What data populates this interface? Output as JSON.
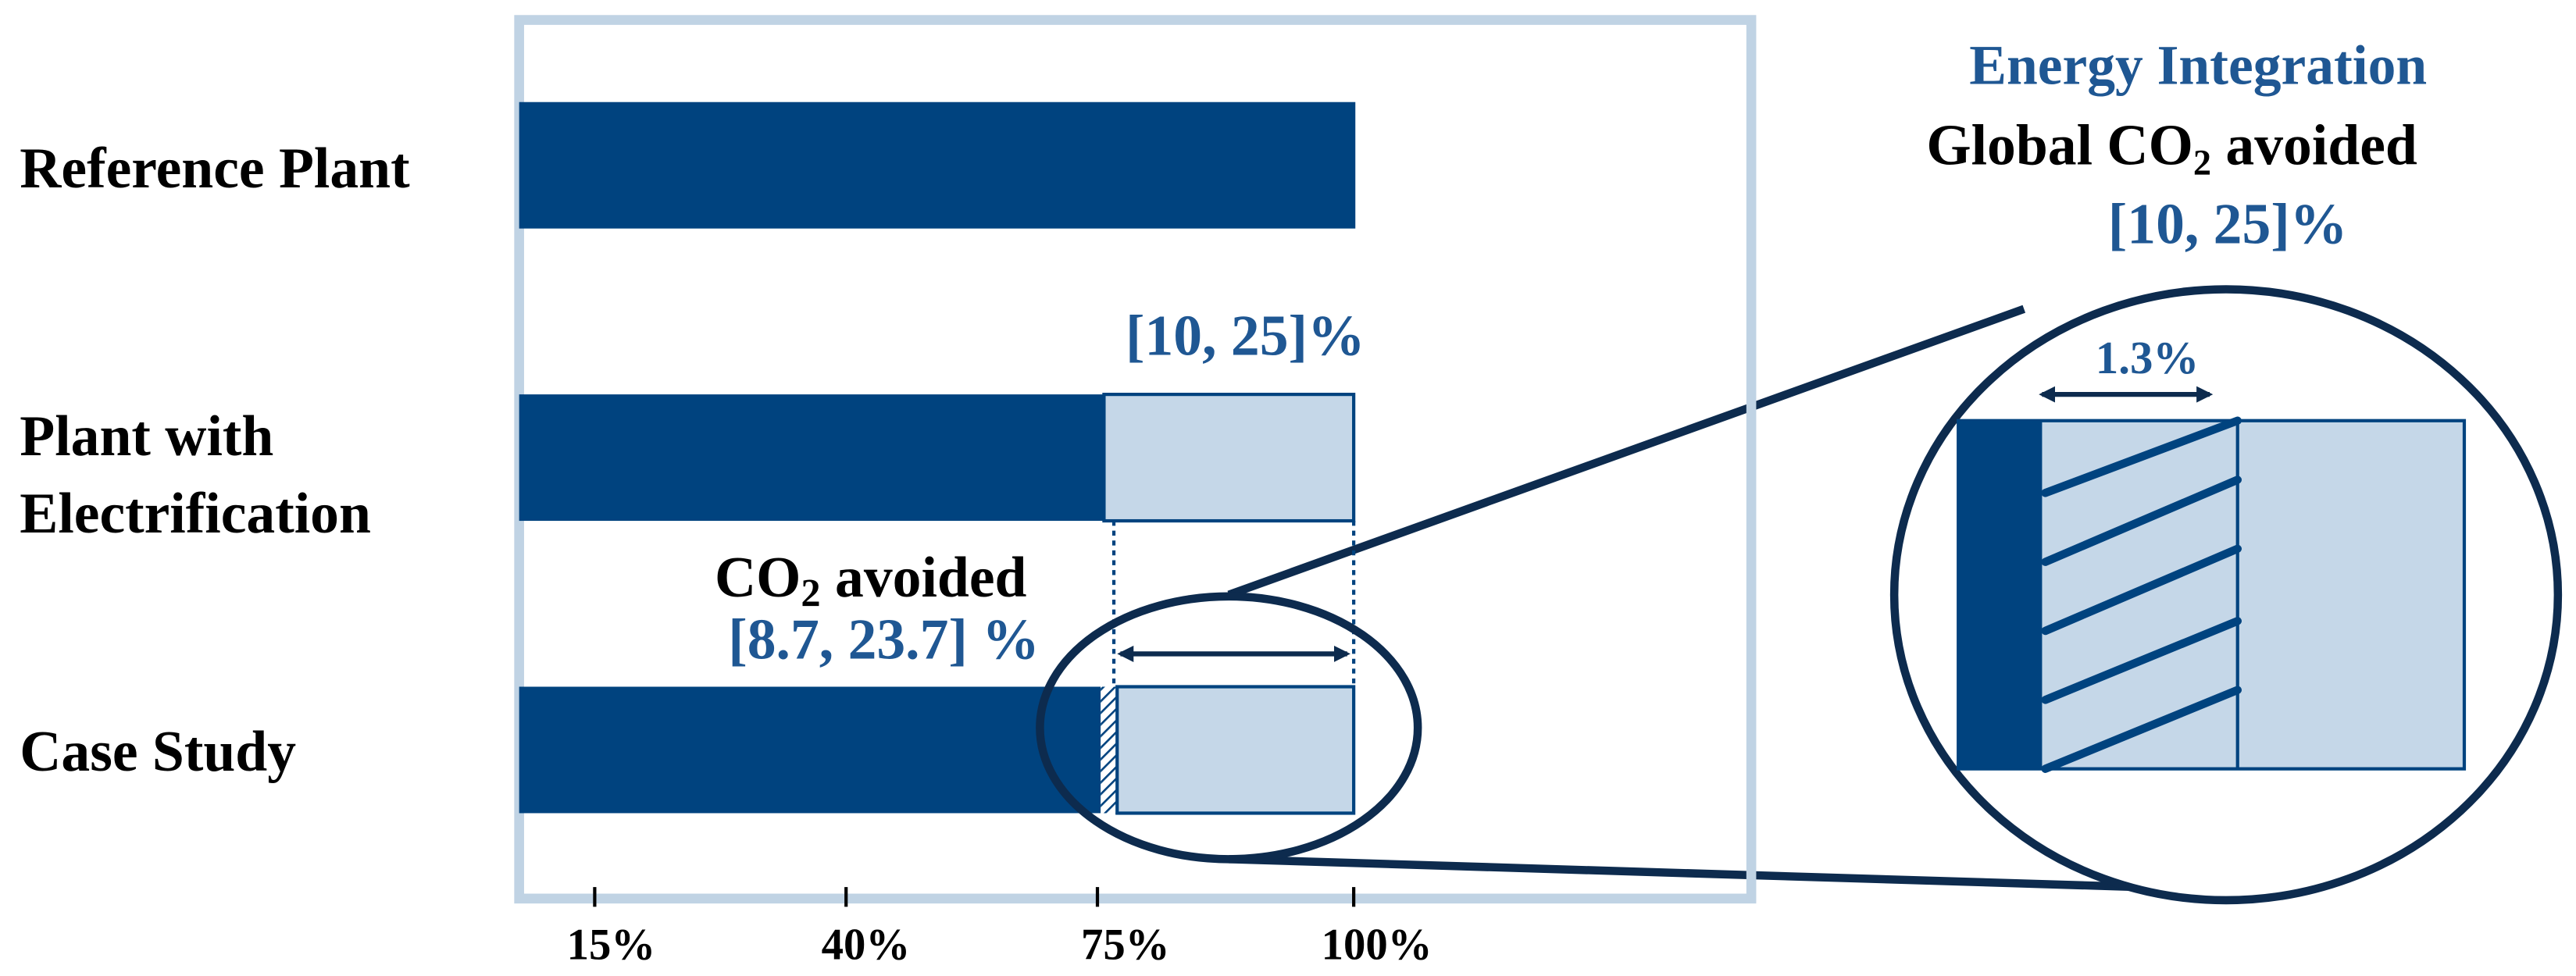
{
  "row_labels": [
    "Reference Plant",
    [
      "Plant with",
      "Electrification"
    ],
    "Case Study"
  ],
  "electrification_range": "[10, 25]%",
  "case_note": {
    "pre": "CO",
    "sub": "2",
    "post": " avoided"
  },
  "case_range": "[8.7, 23.7] %",
  "x_tick_labels": [
    "15%",
    "40%",
    "75%",
    "100%"
  ],
  "zoom": {
    "title": "Energy Integration",
    "subtitle": {
      "pre": "Global CO",
      "sub": "2",
      "post": " avoided"
    },
    "range": "[10, 25]%",
    "detail": "1.3%"
  }
}
